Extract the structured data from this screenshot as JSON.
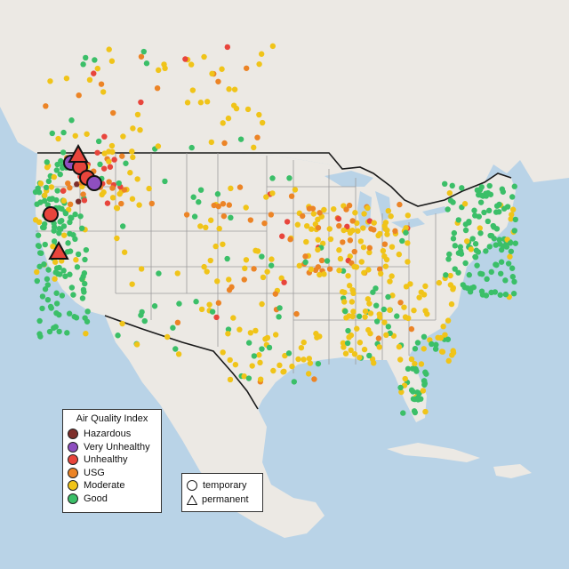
{
  "legend": {
    "aqi_title": "Air Quality Index",
    "aqi_items": [
      {
        "label": "Hazardous",
        "color": "#7e2e2a"
      },
      {
        "label": "Very Unhealthy",
        "color": "#8e4fc0"
      },
      {
        "label": "Unhealthy",
        "color": "#e8453c"
      },
      {
        "label": "USG",
        "color": "#ec8426"
      },
      {
        "label": "Moderate",
        "color": "#f0c419"
      },
      {
        "label": "Good",
        "color": "#3bbf68"
      }
    ],
    "type_items": [
      {
        "label": "temporary",
        "shape": "circle"
      },
      {
        "label": "permanent",
        "shape": "triangle"
      }
    ]
  },
  "colors": {
    "ocean": "#b9d3e7",
    "land": "#ece9e4",
    "border": "#1a1a1a",
    "state_line": "#9c9c9c"
  }
}
